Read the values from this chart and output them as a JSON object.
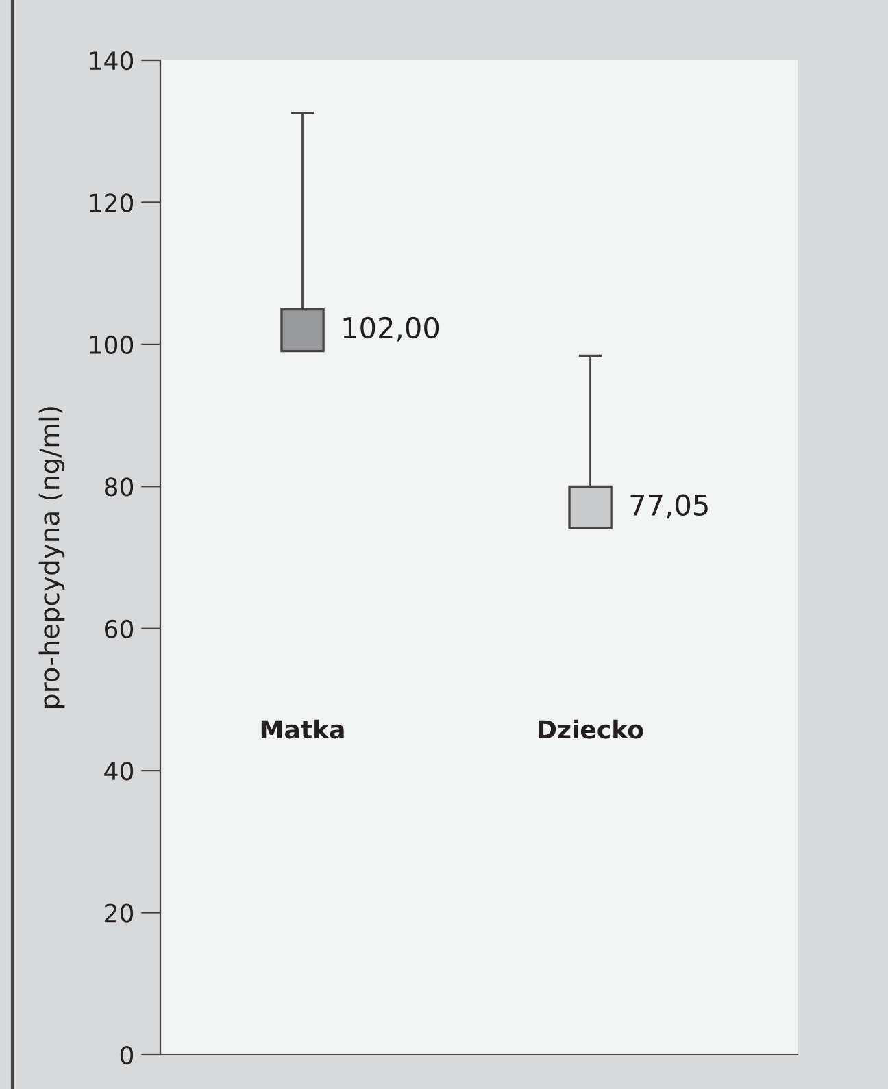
{
  "chart_data": {
    "type": "scatter",
    "marker": "square",
    "ylabel": "pro-hepcydyna (ng/ml)",
    "categories": [
      "Matka",
      "Dziecko"
    ],
    "values": [
      102.0,
      77.05
    ],
    "errors": [
      [
        102.0,
        132.6
      ],
      [
        77.05,
        98.4
      ]
    ],
    "value_labels": [
      "102,00",
      "77,05"
    ],
    "colors": [
      "#98999c",
      "#c8c9cb"
    ],
    "ylim": [
      0,
      140
    ],
    "yticks": [
      0,
      20,
      40,
      60,
      80,
      100,
      120,
      140
    ],
    "grid": false,
    "legend": false
  }
}
